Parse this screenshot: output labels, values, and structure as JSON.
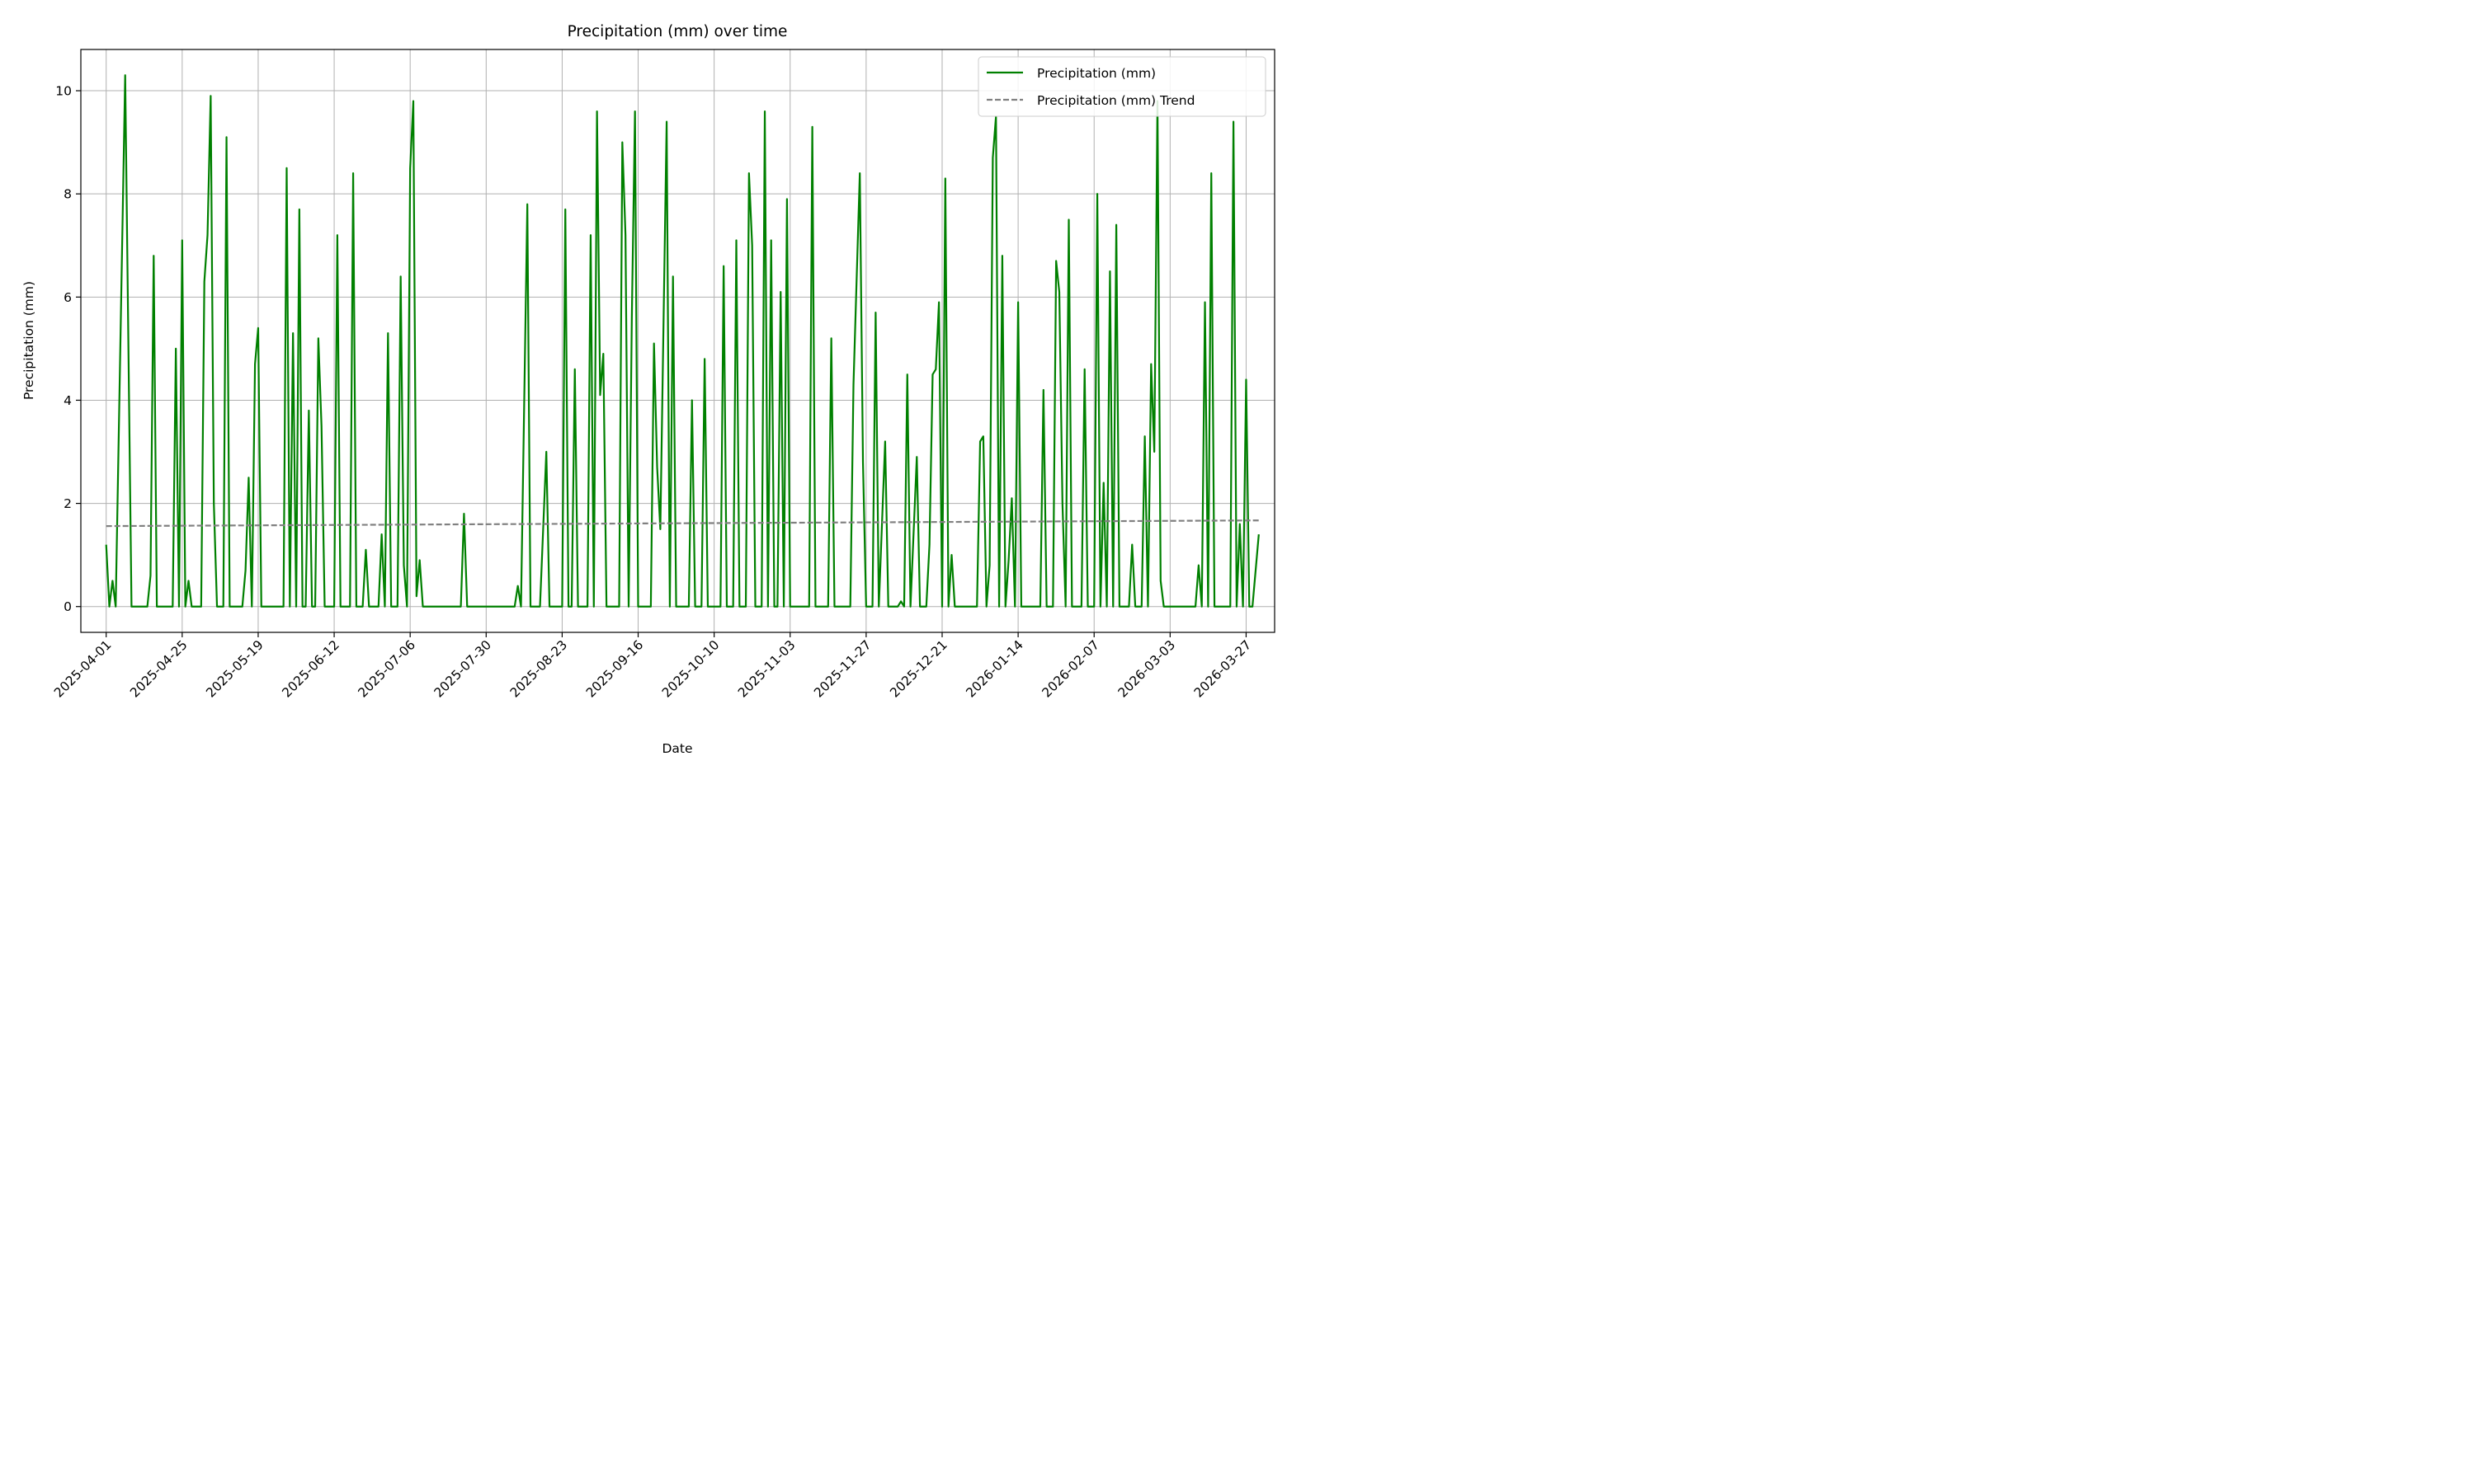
{
  "chart_data": {
    "type": "line",
    "title": "Precipitation (mm) over time",
    "xlabel": "Date",
    "ylabel": "Precipitation (mm)",
    "ylim": [
      -0.5,
      10.8
    ],
    "xlim": [
      "2025-03-24",
      "2026-04-05"
    ],
    "grid": true,
    "legend_position": "top-right",
    "x_ticks": [
      "2025-04-01",
      "2025-04-25",
      "2025-05-19",
      "2025-06-12",
      "2025-07-06",
      "2025-07-30",
      "2025-08-23",
      "2025-09-16",
      "2025-10-10",
      "2025-11-03",
      "2025-11-27",
      "2025-12-21",
      "2026-01-14",
      "2026-02-07",
      "2026-03-03",
      "2026-03-27"
    ],
    "y_ticks": [
      0,
      2,
      4,
      6,
      8,
      10
    ],
    "series": [
      {
        "name": "Precipitation (mm)",
        "color": "#008000",
        "style": "solid",
        "points": [
          [
            "2025-04-01",
            1.2
          ],
          [
            "2025-04-02",
            0
          ],
          [
            "2025-04-03",
            0.5
          ],
          [
            "2025-04-04",
            0
          ],
          [
            "2025-04-07",
            10.3
          ],
          [
            "2025-04-09",
            0
          ],
          [
            "2025-04-14",
            0
          ],
          [
            "2025-04-15",
            0.6
          ],
          [
            "2025-04-16",
            6.8
          ],
          [
            "2025-04-17",
            0
          ],
          [
            "2025-04-22",
            0
          ],
          [
            "2025-04-23",
            5.0
          ],
          [
            "2025-04-24",
            0
          ],
          [
            "2025-04-25",
            7.1
          ],
          [
            "2025-04-26",
            0
          ],
          [
            "2025-04-27",
            0.5
          ],
          [
            "2025-04-28",
            0
          ],
          [
            "2025-05-01",
            0
          ],
          [
            "2025-05-02",
            6.3
          ],
          [
            "2025-05-03",
            7.2
          ],
          [
            "2025-05-04",
            9.9
          ],
          [
            "2025-05-05",
            2.0
          ],
          [
            "2025-05-06",
            0
          ],
          [
            "2025-05-08",
            0
          ],
          [
            "2025-05-09",
            9.1
          ],
          [
            "2025-05-10",
            0
          ],
          [
            "2025-05-14",
            0
          ],
          [
            "2025-05-15",
            0.7
          ],
          [
            "2025-05-16",
            2.5
          ],
          [
            "2025-05-17",
            0
          ],
          [
            "2025-05-18",
            4.7
          ],
          [
            "2025-05-19",
            5.4
          ],
          [
            "2025-05-20",
            0
          ],
          [
            "2025-05-27",
            0
          ],
          [
            "2025-05-28",
            8.5
          ],
          [
            "2025-05-29",
            0
          ],
          [
            "2025-05-30",
            5.3
          ],
          [
            "2025-05-31",
            0
          ],
          [
            "2025-06-01",
            7.7
          ],
          [
            "2025-06-02",
            0
          ],
          [
            "2025-06-03",
            0
          ],
          [
            "2025-06-04",
            3.8
          ],
          [
            "2025-06-05",
            0
          ],
          [
            "2025-06-06",
            0
          ],
          [
            "2025-06-07",
            5.2
          ],
          [
            "2025-06-08",
            3.5
          ],
          [
            "2025-06-09",
            0
          ],
          [
            "2025-06-12",
            0
          ],
          [
            "2025-06-13",
            7.2
          ],
          [
            "2025-06-14",
            0
          ],
          [
            "2025-06-17",
            0
          ],
          [
            "2025-06-18",
            8.4
          ],
          [
            "2025-06-19",
            0
          ],
          [
            "2025-06-21",
            0
          ],
          [
            "2025-06-22",
            1.1
          ],
          [
            "2025-06-23",
            0
          ],
          [
            "2025-06-26",
            0
          ],
          [
            "2025-06-27",
            1.4
          ],
          [
            "2025-06-28",
            0
          ],
          [
            "2025-06-29",
            5.3
          ],
          [
            "2025-06-30",
            0
          ],
          [
            "2025-07-02",
            0
          ],
          [
            "2025-07-03",
            6.4
          ],
          [
            "2025-07-04",
            0.8
          ],
          [
            "2025-07-05",
            0
          ],
          [
            "2025-07-06",
            8.5
          ],
          [
            "2025-07-07",
            9.8
          ],
          [
            "2025-07-08",
            0.2
          ],
          [
            "2025-07-09",
            0.9
          ],
          [
            "2025-07-10",
            0
          ],
          [
            "2025-07-22",
            0
          ],
          [
            "2025-07-23",
            1.8
          ],
          [
            "2025-07-24",
            0
          ],
          [
            "2025-08-08",
            0
          ],
          [
            "2025-08-09",
            0.4
          ],
          [
            "2025-08-10",
            0
          ],
          [
            "2025-08-12",
            7.8
          ],
          [
            "2025-08-13",
            0
          ],
          [
            "2025-08-16",
            0
          ],
          [
            "2025-08-18",
            3.0
          ],
          [
            "2025-08-19",
            0
          ],
          [
            "2025-08-23",
            0
          ],
          [
            "2025-08-24",
            7.7
          ],
          [
            "2025-08-25",
            0
          ],
          [
            "2025-08-26",
            0
          ],
          [
            "2025-08-27",
            4.6
          ],
          [
            "2025-08-28",
            0
          ],
          [
            "2025-08-31",
            0
          ],
          [
            "2025-09-01",
            7.2
          ],
          [
            "2025-09-02",
            0
          ],
          [
            "2025-09-03",
            9.6
          ],
          [
            "2025-09-04",
            4.1
          ],
          [
            "2025-09-05",
            4.9
          ],
          [
            "2025-09-06",
            0
          ],
          [
            "2025-09-10",
            0
          ],
          [
            "2025-09-11",
            9.0
          ],
          [
            "2025-09-12",
            7.2
          ],
          [
            "2025-09-13",
            0
          ],
          [
            "2025-09-14",
            5.6
          ],
          [
            "2025-09-15",
            9.6
          ],
          [
            "2025-09-16",
            0
          ],
          [
            "2025-09-20",
            0
          ],
          [
            "2025-09-21",
            5.1
          ],
          [
            "2025-09-22",
            2.7
          ],
          [
            "2025-09-23",
            1.5
          ],
          [
            "2025-09-25",
            9.4
          ],
          [
            "2025-09-26",
            0
          ],
          [
            "2025-09-27",
            6.4
          ],
          [
            "2025-09-28",
            0
          ],
          [
            "2025-10-02",
            0
          ],
          [
            "2025-10-03",
            4.0
          ],
          [
            "2025-10-04",
            0
          ],
          [
            "2025-10-06",
            0
          ],
          [
            "2025-10-07",
            4.8
          ],
          [
            "2025-10-08",
            0
          ],
          [
            "2025-10-12",
            0
          ],
          [
            "2025-10-13",
            6.6
          ],
          [
            "2025-10-14",
            0
          ],
          [
            "2025-10-16",
            0
          ],
          [
            "2025-10-17",
            7.1
          ],
          [
            "2025-10-18",
            0
          ],
          [
            "2025-10-20",
            0
          ],
          [
            "2025-10-21",
            8.4
          ],
          [
            "2025-10-22",
            7.0
          ],
          [
            "2025-10-23",
            0
          ],
          [
            "2025-10-25",
            0
          ],
          [
            "2025-10-26",
            9.6
          ],
          [
            "2025-10-27",
            0
          ],
          [
            "2025-10-28",
            7.1
          ],
          [
            "2025-10-29",
            0
          ],
          [
            "2025-10-30",
            0
          ],
          [
            "2025-10-31",
            6.1
          ],
          [
            "2025-11-01",
            0
          ],
          [
            "2025-11-02",
            7.9
          ],
          [
            "2025-11-03",
            0
          ],
          [
            "2025-11-09",
            0
          ],
          [
            "2025-11-10",
            9.3
          ],
          [
            "2025-11-11",
            0
          ],
          [
            "2025-11-15",
            0
          ],
          [
            "2025-11-16",
            5.2
          ],
          [
            "2025-11-17",
            0
          ],
          [
            "2025-11-22",
            0
          ],
          [
            "2025-11-23",
            4.3
          ],
          [
            "2025-11-25",
            8.4
          ],
          [
            "2025-11-26",
            2.8
          ],
          [
            "2025-11-27",
            0
          ],
          [
            "2025-11-29",
            0
          ],
          [
            "2025-11-30",
            5.7
          ],
          [
            "2025-12-01",
            0
          ],
          [
            "2025-12-03",
            3.2
          ],
          [
            "2025-12-04",
            0
          ],
          [
            "2025-12-07",
            0
          ],
          [
            "2025-12-08",
            0.1
          ],
          [
            "2025-12-09",
            0
          ],
          [
            "2025-12-10",
            4.5
          ],
          [
            "2025-12-11",
            0
          ],
          [
            "2025-12-13",
            2.9
          ],
          [
            "2025-12-14",
            0
          ],
          [
            "2025-12-16",
            0
          ],
          [
            "2025-12-17",
            1.2
          ],
          [
            "2025-12-18",
            4.5
          ],
          [
            "2025-12-19",
            4.6
          ],
          [
            "2025-12-20",
            5.9
          ],
          [
            "2025-12-21",
            0
          ],
          [
            "2025-12-22",
            8.3
          ],
          [
            "2025-12-23",
            0
          ],
          [
            "2025-12-24",
            1.0
          ],
          [
            "2025-12-25",
            0
          ],
          [
            "2026-01-01",
            0
          ],
          [
            "2026-01-02",
            3.2
          ],
          [
            "2026-01-03",
            3.3
          ],
          [
            "2026-01-04",
            0
          ],
          [
            "2026-01-05",
            0.8
          ],
          [
            "2026-01-06",
            8.7
          ],
          [
            "2026-01-07",
            9.5
          ],
          [
            "2026-01-08",
            0
          ],
          [
            "2026-01-09",
            6.8
          ],
          [
            "2026-01-10",
            0
          ],
          [
            "2026-01-11",
            0.9
          ],
          [
            "2026-01-12",
            2.1
          ],
          [
            "2026-01-13",
            0
          ],
          [
            "2026-01-14",
            5.9
          ],
          [
            "2026-01-15",
            0
          ],
          [
            "2026-01-21",
            0
          ],
          [
            "2026-01-22",
            4.2
          ],
          [
            "2026-01-23",
            0
          ],
          [
            "2026-01-25",
            0
          ],
          [
            "2026-01-26",
            6.7
          ],
          [
            "2026-01-27",
            6.1
          ],
          [
            "2026-01-28",
            2.0
          ],
          [
            "2026-01-29",
            0
          ],
          [
            "2026-01-30",
            7.5
          ],
          [
            "2026-01-31",
            0
          ],
          [
            "2026-02-03",
            0
          ],
          [
            "2026-02-04",
            4.6
          ],
          [
            "2026-02-05",
            0
          ],
          [
            "2026-02-07",
            0
          ],
          [
            "2026-02-08",
            8.0
          ],
          [
            "2026-02-09",
            0
          ],
          [
            "2026-02-10",
            2.4
          ],
          [
            "2026-02-11",
            0
          ],
          [
            "2026-02-12",
            6.5
          ],
          [
            "2026-02-13",
            0
          ],
          [
            "2026-02-14",
            7.4
          ],
          [
            "2026-02-15",
            0
          ],
          [
            "2026-02-18",
            0
          ],
          [
            "2026-02-19",
            1.2
          ],
          [
            "2026-02-20",
            0
          ],
          [
            "2026-02-22",
            0
          ],
          [
            "2026-02-23",
            3.3
          ],
          [
            "2026-02-24",
            0
          ],
          [
            "2026-02-25",
            4.7
          ],
          [
            "2026-02-26",
            3.0
          ],
          [
            "2026-02-27",
            9.8
          ],
          [
            "2026-02-28",
            0.5
          ],
          [
            "2026-03-01",
            0
          ],
          [
            "2026-03-11",
            0
          ],
          [
            "2026-03-12",
            0.8
          ],
          [
            "2026-03-13",
            0
          ],
          [
            "2026-03-14",
            5.9
          ],
          [
            "2026-03-15",
            0
          ],
          [
            "2026-03-16",
            8.4
          ],
          [
            "2026-03-17",
            0
          ],
          [
            "2026-03-22",
            0
          ],
          [
            "2026-03-23",
            9.4
          ],
          [
            "2026-03-24",
            0
          ],
          [
            "2026-03-25",
            1.6
          ],
          [
            "2026-03-26",
            0
          ],
          [
            "2026-03-27",
            4.4
          ],
          [
            "2026-03-28",
            0
          ],
          [
            "2026-03-29",
            0
          ],
          [
            "2026-03-31",
            1.4
          ]
        ]
      },
      {
        "name": "Precipitation (mm) Trend",
        "color": "#808080",
        "style": "dashed",
        "points": [
          [
            "2025-04-01",
            1.56
          ],
          [
            "2026-03-31",
            1.67
          ]
        ]
      }
    ]
  }
}
